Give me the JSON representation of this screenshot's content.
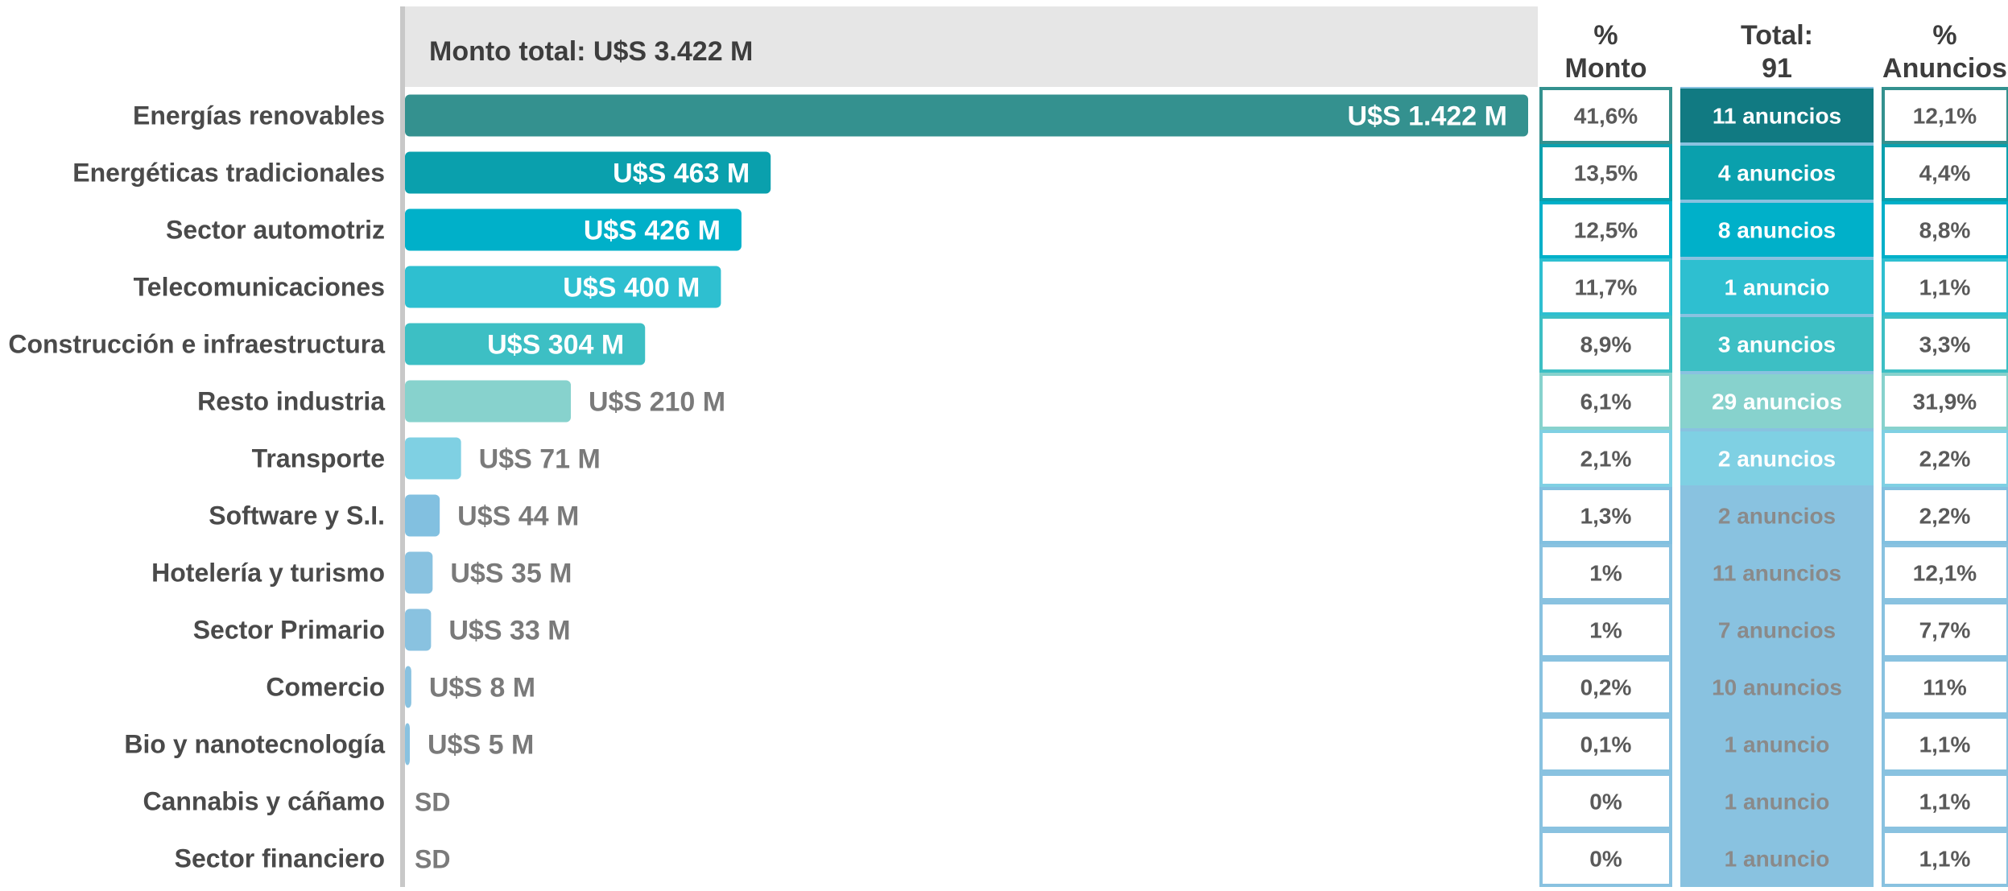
{
  "chart_data": {
    "type": "bar",
    "orientation": "horizontal",
    "title": "",
    "header_text": "Monto total: U$S 3.422  M",
    "columns": {
      "pct_monto": [
        "%",
        "Monto"
      ],
      "total": [
        "Total:",
        "91"
      ],
      "pct_anuncios": [
        "%",
        "Anuncios"
      ]
    },
    "categories": [
      "Energías renovables",
      "Energéticas tradicionales",
      "Sector automotriz",
      "Telecomunicaciones",
      "Construcción e infraestructura",
      "Resto industria",
      "Transporte",
      "Software y S.I.",
      "Hotelería y turismo",
      "Sector Primario",
      "Comercio",
      "Bio y nanotecnología",
      "Cannabis y cáñamo",
      "Sector financiero"
    ],
    "values": [
      1422,
      463,
      426,
      400,
      304,
      210,
      71,
      44,
      35,
      33,
      8,
      5,
      null,
      null
    ],
    "value_labels": [
      "U$S 1.422 M",
      "U$S 463 M",
      "U$S 426 M",
      "U$S 400 M",
      "U$S 304 M",
      "U$S 210 M",
      "U$S 71 M",
      "U$S 44 M",
      "U$S 35 M",
      "U$S 33 M",
      "U$S 8 M",
      "U$S 5 M",
      "SD",
      "SD"
    ],
    "pct_monto": [
      "41,6%",
      "13,5%",
      "12,5%",
      "11,7%",
      "8,9%",
      "6,1%",
      "2,1%",
      "1,3%",
      "1%",
      "1%",
      "0,2%",
      "0,1%",
      "0%",
      "0%"
    ],
    "anuncios": [
      "11 anuncios",
      "4 anuncios",
      "8 anuncios",
      "1 anuncio",
      "3 anuncios",
      "29 anuncios",
      "2 anuncios",
      "2 anuncios",
      "11 anuncios",
      "7 anuncios",
      "10 anuncios",
      "1 anuncio",
      "1 anuncio",
      "1 anuncio"
    ],
    "pct_anuncios": [
      "12,1%",
      "4,4%",
      "8,8%",
      "1,1%",
      "3,3%",
      "31,9%",
      "2,2%",
      "2,2%",
      "12,1%",
      "7,7%",
      "11%",
      "1,1%",
      "1,1%",
      "1,1%"
    ],
    "colors": [
      "#34918f",
      "#0aa0ad",
      "#00b0c9",
      "#2ebfd0",
      "#3dbfc4",
      "#87d2cd",
      "#7fd0e3",
      "#82c0e0",
      "#89c2e0",
      "#89c2e0",
      "#89c2e0",
      "#89c2e0",
      "#89c2e0",
      "#89c2e0"
    ],
    "anuncios_cell_colors": [
      "#117a82",
      "#0aa0ad",
      "#00b0c9",
      "#2ebfd0",
      "#3dbfc4",
      "#87d2cd",
      "#7fd0e3",
      "#89c2e0",
      "#89c2e0",
      "#89c2e0",
      "#89c2e0",
      "#89c2e0",
      "#89c2e0",
      "#89c2e0"
    ],
    "label_text_color": "#5a5a5a",
    "header_bg": "#e6e6e6",
    "xlim": [
      0,
      1422
    ],
    "grid": false,
    "legend": "none"
  }
}
